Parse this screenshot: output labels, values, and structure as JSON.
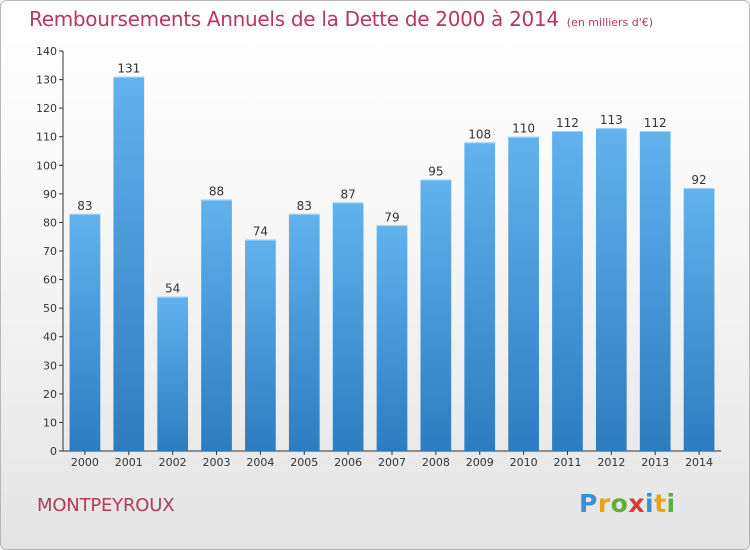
{
  "header": {
    "title": "Remboursements Annuels de la Dette de 2000 à 2014",
    "unit": "(en milliers d'€)"
  },
  "footer": {
    "commune": "MONTPEYROUX",
    "logo": {
      "letters": [
        "P",
        "r",
        "o",
        "x",
        "i",
        "t",
        "i"
      ],
      "colors": [
        "#3a8fd4",
        "#e8a21d",
        "#5db03a",
        "#d93a3a",
        "#3a8fd4",
        "#e8a21d",
        "#5db03a"
      ]
    }
  },
  "chart_data": {
    "type": "bar",
    "title": "Remboursements Annuels de la Dette de 2000 à 2014",
    "categories": [
      "2000",
      "2001",
      "2002",
      "2003",
      "2004",
      "2005",
      "2006",
      "2007",
      "2008",
      "2009",
      "2010",
      "2011",
      "2012",
      "2013",
      "2014"
    ],
    "values": [
      83,
      131,
      54,
      88,
      74,
      83,
      87,
      79,
      95,
      108,
      110,
      112,
      113,
      112,
      92
    ],
    "ylim": [
      0,
      140
    ],
    "yticks": [
      0,
      10,
      20,
      30,
      40,
      50,
      60,
      70,
      80,
      90,
      100,
      110,
      120,
      130,
      140
    ],
    "grid": false,
    "bar_color_top": "#62b2ee",
    "bar_color_bottom": "#2d7cc0"
  }
}
